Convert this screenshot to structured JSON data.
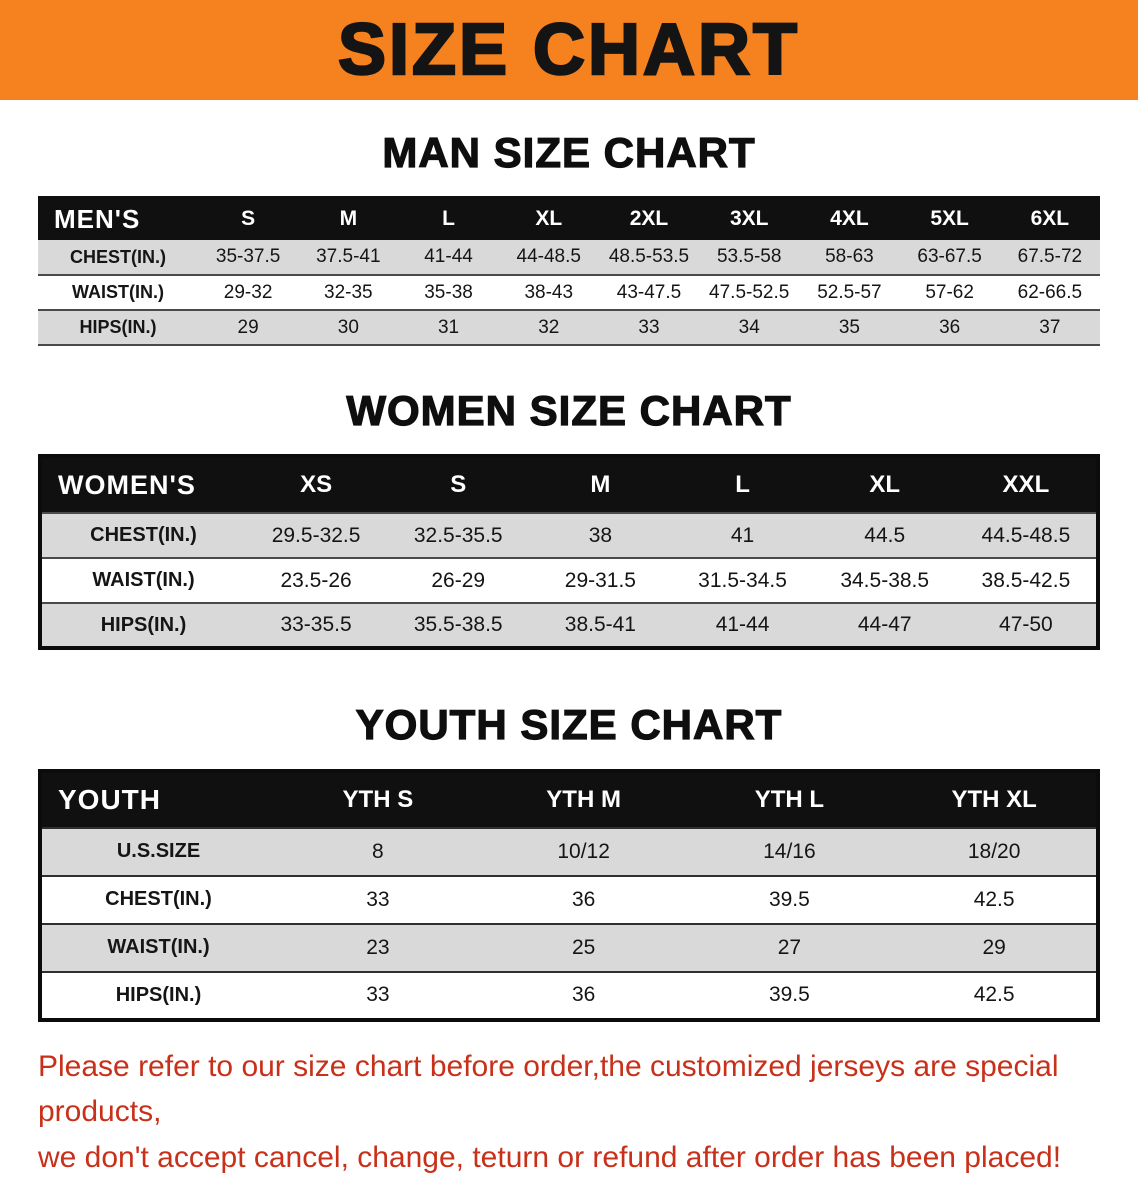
{
  "banner": {
    "title": "SIZE CHART"
  },
  "chart_data": [
    {
      "type": "table",
      "title": "MAN SIZE CHART",
      "columns": [
        "MEN'S",
        "S",
        "M",
        "L",
        "XL",
        "2XL",
        "3XL",
        "4XL",
        "5XL",
        "6XL"
      ],
      "rows": [
        {
          "label": "CHEST(IN.)",
          "values": [
            "35-37.5",
            "37.5-41",
            "41-44",
            "44-48.5",
            "48.5-53.5",
            "53.5-58",
            "58-63",
            "63-67.5",
            "67.5-72"
          ]
        },
        {
          "label": "WAIST(IN.)",
          "values": [
            "29-32",
            "32-35",
            "35-38",
            "38-43",
            "43-47.5",
            "47.5-52.5",
            "52.5-57",
            "57-62",
            "62-66.5"
          ]
        },
        {
          "label": "HIPS(IN.)",
          "values": [
            "29",
            "30",
            "31",
            "32",
            "33",
            "34",
            "35",
            "36",
            "37"
          ]
        }
      ]
    },
    {
      "type": "table",
      "title": "WOMEN SIZE CHART",
      "columns": [
        "WOMEN'S",
        "XS",
        "S",
        "M",
        "L",
        "XL",
        "XXL"
      ],
      "rows": [
        {
          "label": "CHEST(IN.)",
          "values": [
            "29.5-32.5",
            "32.5-35.5",
            "38",
            "41",
            "44.5",
            "44.5-48.5"
          ]
        },
        {
          "label": "WAIST(IN.)",
          "values": [
            "23.5-26",
            "26-29",
            "29-31.5",
            "31.5-34.5",
            "34.5-38.5",
            "38.5-42.5"
          ]
        },
        {
          "label": "HIPS(IN.)",
          "values": [
            "33-35.5",
            "35.5-38.5",
            "38.5-41",
            "41-44",
            "44-47",
            "47-50"
          ]
        }
      ]
    },
    {
      "type": "table",
      "title": "YOUTH SIZE CHART",
      "columns": [
        "YOUTH",
        "YTH S",
        "YTH M",
        "YTH L",
        "YTH XL"
      ],
      "rows": [
        {
          "label": "U.S.SIZE",
          "values": [
            "8",
            "10/12",
            "14/16",
            "18/20"
          ]
        },
        {
          "label": "CHEST(IN.)",
          "values": [
            "33",
            "36",
            "39.5",
            "42.5"
          ]
        },
        {
          "label": "WAIST(IN.)",
          "values": [
            "23",
            "25",
            "27",
            "29"
          ]
        },
        {
          "label": "HIPS(IN.)",
          "values": [
            "33",
            "36",
            "39.5",
            "42.5"
          ]
        }
      ]
    }
  ],
  "footer": {
    "line1": "Please refer to our size chart before order,the customized jerseys are special products,",
    "line2": "we don't accept cancel, change, teturn or refund after order has been placed!"
  },
  "colors": {
    "banner_bg": "#f5821f",
    "table_header_bg": "#101010",
    "alt_row_bg": "#d9d9d9",
    "disclaimer_text": "#c8301a"
  }
}
